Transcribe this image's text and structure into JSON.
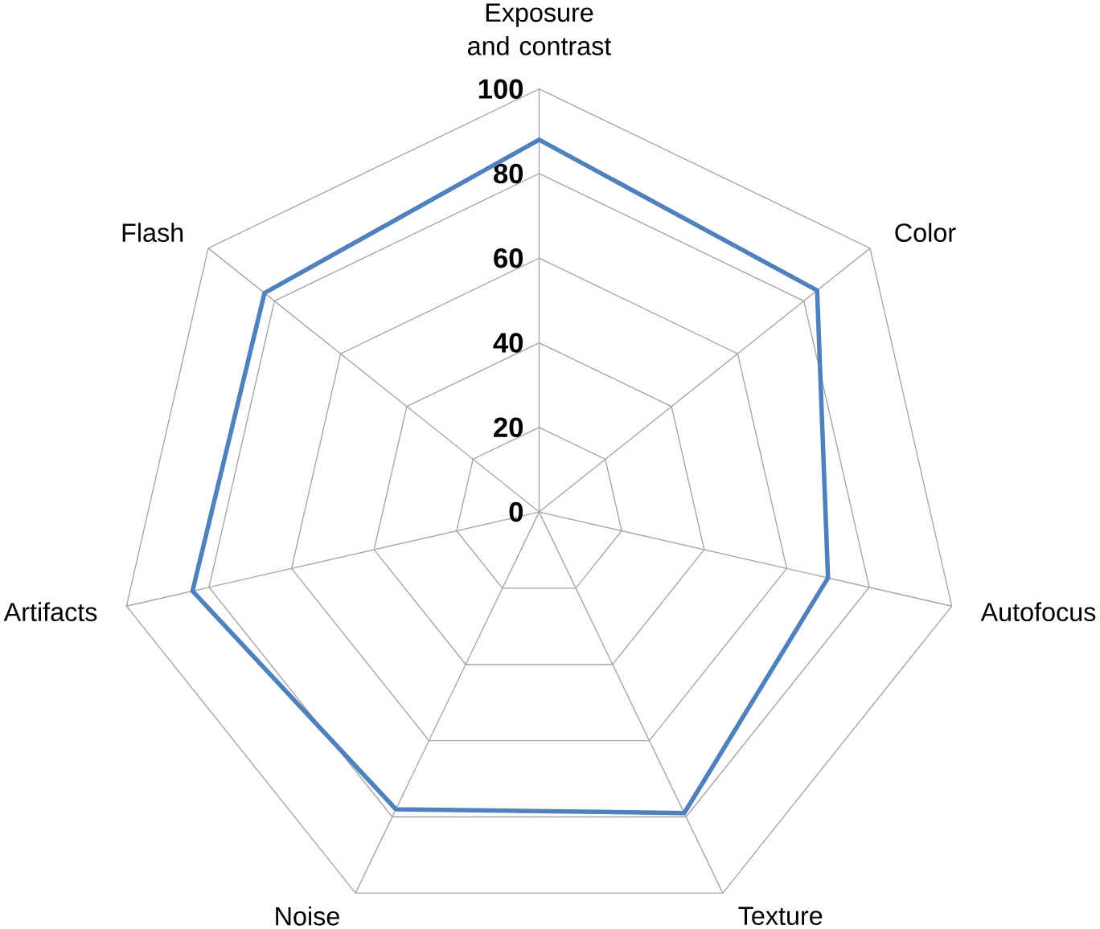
{
  "chart_data": {
    "type": "radar",
    "categories": [
      "Exposure and contrast",
      "Color",
      "Autofocus",
      "Texture",
      "Noise",
      "Artifacts",
      "Flash"
    ],
    "series": [
      {
        "color": "#4f81bd",
        "values": [
          88,
          84,
          70,
          79,
          78,
          84,
          83
        ]
      }
    ],
    "ylim": [
      0,
      100
    ],
    "yticks": [
      0,
      20,
      40,
      60,
      80,
      100
    ],
    "grid": true
  }
}
